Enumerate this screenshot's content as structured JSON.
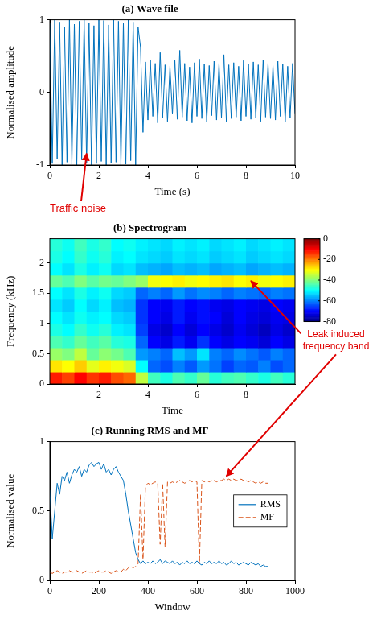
{
  "chart_data": [
    {
      "type": "line",
      "title": "(a) Wave file",
      "x_label": "Time (s)",
      "y_label": "Normalised amplitude",
      "x": [
        0,
        0.1,
        0.2,
        0.3,
        0.4,
        0.5,
        0.6,
        0.7,
        0.8,
        0.9,
        1,
        1.1,
        1.2,
        1.3,
        1.4,
        1.5,
        1.6,
        1.7,
        1.8,
        1.9,
        2,
        2.1,
        2.2,
        2.3,
        2.4,
        2.5,
        2.6,
        2.7,
        2.8,
        2.9,
        3,
        3.1,
        3.2,
        3.3,
        3.4,
        3.5,
        3.6,
        3.7,
        3.8,
        3.9,
        4,
        4.1,
        4.2,
        4.3,
        4.4,
        4.5,
        4.6,
        4.7,
        4.8,
        4.9,
        5,
        5.1,
        5.2,
        5.3,
        5.4,
        5.5,
        5.6,
        5.7,
        5.8,
        5.9,
        6,
        6.1,
        6.2,
        6.3,
        6.4,
        6.5,
        6.6,
        6.7,
        6.8,
        6.9,
        7,
        7.1,
        7.2,
        7.3,
        7.4,
        7.5,
        7.6,
        7.7,
        7.8,
        7.9,
        8,
        8.1,
        8.2,
        8.3,
        8.4,
        8.5,
        8.6,
        8.7,
        8.8,
        8.9,
        9,
        9.1,
        9.2,
        9.3,
        9.4,
        9.5,
        9.6,
        9.7,
        9.8,
        9.9,
        10
      ],
      "values": [
        0.95,
        -0.98,
        1,
        -0.92,
        0.97,
        -1,
        0.9,
        -0.96,
        1,
        -0.99,
        0.94,
        -1,
        0.98,
        -0.93,
        1,
        -0.97,
        0.96,
        -1,
        0.92,
        -0.98,
        1,
        -0.95,
        0.99,
        -1,
        0.93,
        -0.97,
        1,
        -0.96,
        0.98,
        -1,
        0.95,
        -0.99,
        1,
        -0.94,
        0.97,
        -1,
        0.9,
        0.62,
        -0.55,
        0.42,
        -0.38,
        0.45,
        -0.33,
        0.4,
        -0.42,
        0.55,
        -0.35,
        0.38,
        -0.4,
        0.36,
        -0.3,
        0.44,
        -0.37,
        0.58,
        -0.34,
        0.4,
        -0.39,
        0.35,
        -0.42,
        0.41,
        -0.33,
        0.46,
        -0.36,
        0.39,
        -0.41,
        0.37,
        -0.32,
        0.43,
        -0.38,
        0.4,
        -0.35,
        0.52,
        -0.4,
        0.38,
        -0.36,
        0.41,
        -0.34,
        0.36,
        -0.39,
        0.44,
        -0.33,
        0.39,
        -0.37,
        0.42,
        -0.35,
        0.38,
        -0.4,
        0.45,
        -0.34,
        0.4,
        -0.36,
        0.37,
        -0.38,
        0.43,
        -0.33,
        0.39,
        -0.41,
        0.36,
        -0.35,
        0.4,
        -0.3
      ],
      "color": "#0072bd",
      "xlim": [
        0,
        10
      ],
      "xticks": [
        0,
        2,
        4,
        6,
        8,
        10
      ],
      "ylim": [
        -1,
        1
      ],
      "yticks": [
        -1,
        0,
        1
      ],
      "grid": false,
      "annotations": [
        "Traffic noise"
      ]
    },
    {
      "type": "heatmap",
      "title": "(b) Spectrogram",
      "x_label": "Time",
      "y_label": "Frequency (kHz)",
      "x_bins": [
        0,
        0.5,
        1,
        1.5,
        2,
        2.5,
        3,
        3.5,
        4,
        4.5,
        5,
        5.5,
        6,
        6.5,
        7,
        7.5,
        8,
        8.5,
        9,
        9.5,
        10
      ],
      "y_bins": [
        0,
        0.2,
        0.4,
        0.6,
        0.8,
        1,
        1.2,
        1.4,
        1.6,
        1.8,
        2,
        2.2,
        2.4
      ],
      "cells": [
        [
          -12,
          -15,
          -10,
          -14,
          -12,
          -16,
          -18,
          -35,
          -45,
          -48,
          -44,
          -46,
          -42,
          -47,
          -45,
          -44,
          -46,
          -48,
          -45,
          -47
        ],
        [
          -28,
          -30,
          -26,
          -32,
          -29,
          -31,
          -33,
          -50,
          -62,
          -64,
          -60,
          -63,
          -58,
          -61,
          -65,
          -62,
          -63,
          -60,
          -64,
          -62
        ],
        [
          -38,
          -40,
          -35,
          -42,
          -39,
          -41,
          -44,
          -58,
          -60,
          -62,
          -55,
          -58,
          -52,
          -60,
          -62,
          -59,
          -61,
          -63,
          -60,
          -62
        ],
        [
          -44,
          -46,
          -42,
          -45,
          -43,
          -47,
          -48,
          -62,
          -70,
          -72,
          -68,
          -71,
          -66,
          -70,
          -72,
          -70,
          -71,
          -73,
          -70,
          -72
        ],
        [
          -48,
          -50,
          -46,
          -49,
          -47,
          -51,
          -52,
          -65,
          -72,
          -74,
          -70,
          -73,
          -70,
          -72,
          -74,
          -71,
          -73,
          -75,
          -72,
          -74
        ],
        [
          -50,
          -52,
          -49,
          -51,
          -50,
          -53,
          -54,
          -66,
          -70,
          -72,
          -68,
          -71,
          -69,
          -70,
          -73,
          -70,
          -72,
          -73,
          -71,
          -72
        ],
        [
          -52,
          -54,
          -50,
          -53,
          -51,
          -55,
          -56,
          -66,
          -70,
          -71,
          -68,
          -70,
          -69,
          -71,
          -72,
          -70,
          -71,
          -72,
          -70,
          -71
        ],
        [
          -50,
          -52,
          -48,
          -51,
          -49,
          -53,
          -54,
          -62,
          -60,
          -62,
          -58,
          -61,
          -59,
          -60,
          -62,
          -60,
          -61,
          -62,
          -60,
          -61
        ],
        [
          -42,
          -44,
          -40,
          -43,
          -41,
          -42,
          -40,
          -38,
          -31,
          -30,
          -29,
          -31,
          -30,
          -29,
          -28,
          -30,
          -29,
          -31,
          -30,
          -29
        ],
        [
          -50,
          -52,
          -48,
          -51,
          -49,
          -53,
          -52,
          -55,
          -56,
          -57,
          -55,
          -56,
          -55,
          -57,
          -56,
          -55,
          -57,
          -56,
          -55,
          -56
        ],
        [
          -48,
          -50,
          -46,
          -49,
          -47,
          -51,
          -50,
          -52,
          -53,
          -54,
          -52,
          -53,
          -52,
          -54,
          -53,
          -52,
          -54,
          -53,
          -52,
          -53
        ],
        [
          -47,
          -49,
          -45,
          -48,
          -46,
          -50,
          -49,
          -51,
          -52,
          -53,
          -51,
          -52,
          -51,
          -53,
          -52,
          -51,
          -53,
          -52,
          -51,
          -52
        ]
      ],
      "xlim": [
        0,
        10
      ],
      "xticks": [
        2,
        4,
        6,
        8
      ],
      "ylim": [
        0,
        2.4
      ],
      "yticks": [
        0,
        0.5,
        1,
        1.5,
        2
      ],
      "colorbar_lim": [
        -80,
        0
      ],
      "colorbar_ticks": [
        -80,
        -60,
        -40,
        -20,
        0
      ],
      "grid": false,
      "annotations": [
        "Leak induced frequency band"
      ]
    },
    {
      "type": "line",
      "title": "(c) Running RMS and MF",
      "x_label": "Window",
      "y_label": "Normalised value",
      "x": [
        0,
        10,
        20,
        30,
        40,
        50,
        60,
        70,
        80,
        90,
        100,
        110,
        120,
        130,
        140,
        150,
        160,
        170,
        180,
        190,
        200,
        210,
        220,
        230,
        240,
        250,
        260,
        270,
        280,
        290,
        300,
        310,
        320,
        330,
        340,
        350,
        360,
        370,
        380,
        390,
        400,
        410,
        420,
        430,
        440,
        450,
        460,
        470,
        480,
        490,
        500,
        510,
        520,
        530,
        540,
        550,
        560,
        570,
        580,
        590,
        600,
        610,
        620,
        630,
        640,
        650,
        660,
        670,
        680,
        690,
        700,
        710,
        720,
        730,
        740,
        750,
        760,
        770,
        780,
        790,
        800,
        810,
        820,
        830,
        840,
        850,
        860,
        870,
        880,
        890
      ],
      "series": [
        {
          "name": "RMS",
          "color": "#0072bd",
          "line_style": "solid",
          "values": [
            0.65,
            0.3,
            0.5,
            0.7,
            0.62,
            0.75,
            0.72,
            0.78,
            0.7,
            0.76,
            0.8,
            0.78,
            0.82,
            0.75,
            0.8,
            0.78,
            0.83,
            0.85,
            0.82,
            0.84,
            0.85,
            0.8,
            0.84,
            0.78,
            0.8,
            0.76,
            0.8,
            0.82,
            0.78,
            0.75,
            0.72,
            0.62,
            0.5,
            0.4,
            0.3,
            0.2,
            0.15,
            0.12,
            0.14,
            0.12,
            0.13,
            0.12,
            0.14,
            0.12,
            0.13,
            0.15,
            0.12,
            0.14,
            0.13,
            0.12,
            0.14,
            0.12,
            0.13,
            0.11,
            0.13,
            0.12,
            0.14,
            0.12,
            0.13,
            0.12,
            0.14,
            0.12,
            0.11,
            0.13,
            0.12,
            0.14,
            0.12,
            0.13,
            0.12,
            0.14,
            0.12,
            0.13,
            0.11,
            0.12,
            0.14,
            0.12,
            0.13,
            0.11,
            0.12,
            0.13,
            0.12,
            0.11,
            0.13,
            0.12,
            0.11,
            0.12,
            0.1,
            0.11,
            0.1,
            0.1
          ]
        },
        {
          "name": "MF",
          "color": "#d95319",
          "line_style": "dashed",
          "values": [
            0.06,
            0.05,
            0.06,
            0.07,
            0.06,
            0.05,
            0.06,
            0.06,
            0.07,
            0.06,
            0.06,
            0.07,
            0.06,
            0.05,
            0.06,
            0.07,
            0.06,
            0.06,
            0.05,
            0.06,
            0.07,
            0.06,
            0.06,
            0.07,
            0.06,
            0.05,
            0.06,
            0.07,
            0.06,
            0.06,
            0.08,
            0.07,
            0.09,
            0.1,
            0.09,
            0.1,
            0.12,
            0.62,
            0.15,
            0.68,
            0.7,
            0.69,
            0.7,
            0.71,
            0.7,
            0.26,
            0.7,
            0.24,
            0.71,
            0.7,
            0.71,
            0.7,
            0.71,
            0.72,
            0.71,
            0.7,
            0.71,
            0.72,
            0.71,
            0.72,
            0.71,
            0.12,
            0.72,
            0.71,
            0.72,
            0.71,
            0.72,
            0.72,
            0.71,
            0.72,
            0.72,
            0.73,
            0.72,
            0.73,
            0.72,
            0.73,
            0.72,
            0.72,
            0.73,
            0.72,
            0.72,
            0.71,
            0.72,
            0.71,
            0.7,
            0.71,
            0.7,
            0.71,
            0.7,
            0.7
          ]
        }
      ],
      "xlim": [
        0,
        1000
      ],
      "xticks": [
        0,
        200,
        400,
        600,
        800,
        1000
      ],
      "ylim": [
        0,
        1
      ],
      "yticks": [
        0,
        0.5,
        1
      ],
      "grid": false,
      "legend": "right"
    }
  ]
}
